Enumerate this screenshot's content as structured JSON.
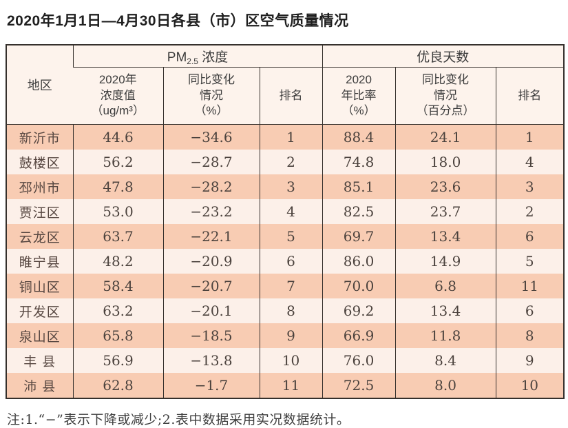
{
  "title": "2020年1月1日—4月30日各县（市）区空气质量情况",
  "table": {
    "region_header": "地区",
    "pm_group": {
      "prefix": "PM",
      "sub": "2.5",
      "suffix": " 浓度"
    },
    "good_days_group": "优良天数",
    "columns": [
      "2020年\n浓度值\n（ug/m³）",
      "同比变化\n情况\n（%）",
      "排名",
      "2020\n年比率\n（%）",
      "同比变化\n情况\n（百分点）",
      "排名"
    ],
    "rows": [
      {
        "region": "新沂市",
        "pm_value": "44.6",
        "pm_change": "−34.6",
        "pm_rank": "1",
        "good_ratio": "88.4",
        "good_change": "24.1",
        "good_rank": "1"
      },
      {
        "region": "鼓楼区",
        "pm_value": "56.2",
        "pm_change": "−28.7",
        "pm_rank": "2",
        "good_ratio": "74.8",
        "good_change": "18.0",
        "good_rank": "4"
      },
      {
        "region": "邳州市",
        "pm_value": "47.8",
        "pm_change": "−28.2",
        "pm_rank": "3",
        "good_ratio": "85.1",
        "good_change": "23.6",
        "good_rank": "3"
      },
      {
        "region": "贾汪区",
        "pm_value": "53.0",
        "pm_change": "−23.2",
        "pm_rank": "4",
        "good_ratio": "82.5",
        "good_change": "23.7",
        "good_rank": "2"
      },
      {
        "region": "云龙区",
        "pm_value": "63.7",
        "pm_change": "−22.1",
        "pm_rank": "5",
        "good_ratio": "69.7",
        "good_change": "13.4",
        "good_rank": "6"
      },
      {
        "region": "睢宁县",
        "pm_value": "48.2",
        "pm_change": "−20.9",
        "pm_rank": "6",
        "good_ratio": "86.0",
        "good_change": "14.9",
        "good_rank": "5"
      },
      {
        "region": "铜山区",
        "pm_value": "58.4",
        "pm_change": "−20.7",
        "pm_rank": "7",
        "good_ratio": "70.0",
        "good_change": "6.8",
        "good_rank": "11"
      },
      {
        "region": "开发区",
        "pm_value": "63.2",
        "pm_change": "−20.1",
        "pm_rank": "8",
        "good_ratio": "69.2",
        "good_change": "13.4",
        "good_rank": "6"
      },
      {
        "region": "泉山区",
        "pm_value": "65.8",
        "pm_change": "−18.5",
        "pm_rank": "9",
        "good_ratio": "66.9",
        "good_change": "11.8",
        "good_rank": "8"
      },
      {
        "region": "丰 县",
        "pm_value": "56.9",
        "pm_change": "−13.8",
        "pm_rank": "10",
        "good_ratio": "76.0",
        "good_change": "8.4",
        "good_rank": "9"
      },
      {
        "region": "沛 县",
        "pm_value": "62.8",
        "pm_change": "−1.7",
        "pm_rank": "11",
        "good_ratio": "72.5",
        "good_change": "8.0",
        "good_rank": "10"
      }
    ]
  },
  "footnote": "注:1.“−”表示下降或减少;2.表中数据采用实况数据统计。",
  "colors": {
    "row_dark": "#f8ccb3",
    "row_light": "#fcf0e9",
    "header_bg": "#fdf3ec",
    "border": "#35302c"
  }
}
